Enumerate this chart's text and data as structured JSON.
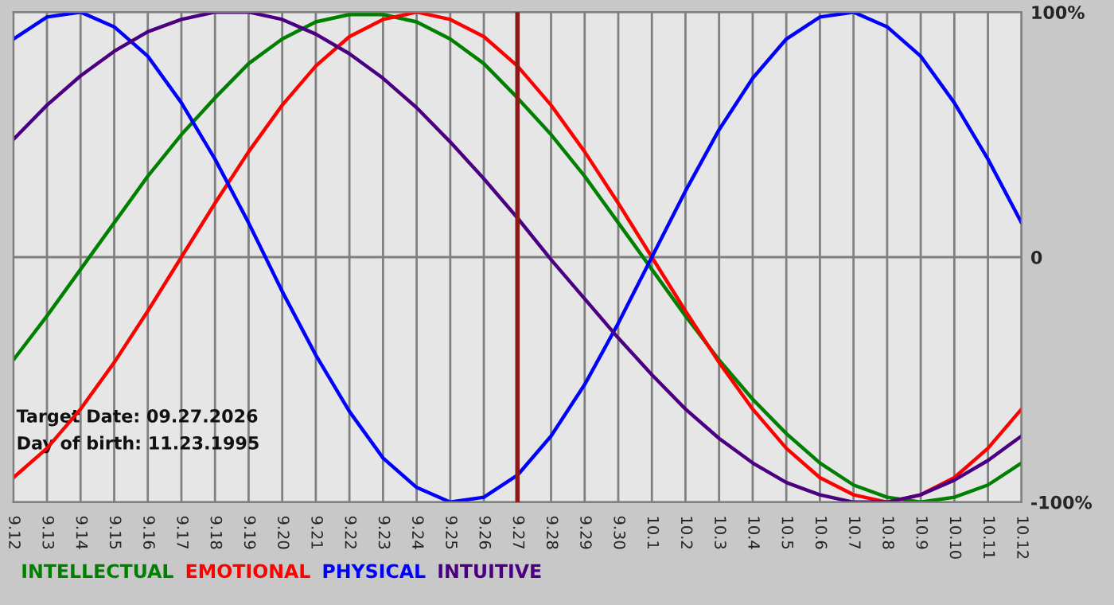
{
  "chart_data": {
    "type": "line",
    "categories": [
      "9.12",
      "9.13",
      "9.14",
      "9.15",
      "9.16",
      "9.17",
      "9.18",
      "9.19",
      "9.20",
      "9.21",
      "9.22",
      "9.23",
      "9.24",
      "9.25",
      "9.26",
      "9.27",
      "9.28",
      "9.29",
      "9.30",
      "10.1",
      "10.2",
      "10.3",
      "10.4",
      "10.5",
      "10.6",
      "10.7",
      "10.8",
      "10.9",
      "10.10",
      "10.11",
      "10.12"
    ],
    "series": [
      {
        "name": "INTELLECTUAL",
        "color": "#008000",
        "values": [
          -42,
          -24,
          -5,
          14,
          33,
          50,
          65,
          79,
          89,
          96,
          99,
          99,
          96,
          89,
          79,
          65,
          50,
          33,
          14,
          -5,
          -24,
          -42,
          -58,
          -72,
          -84,
          -93,
          -98,
          -100,
          -98,
          -93,
          -84
        ]
      },
      {
        "name": "EMOTIONAL",
        "color": "#ff0000",
        "values": [
          -90,
          -78,
          -62,
          -43,
          -22,
          0,
          22,
          43,
          62,
          78,
          90,
          97,
          100,
          97,
          90,
          78,
          62,
          43,
          22,
          0,
          -22,
          -43,
          -62,
          -78,
          -90,
          -97,
          -100,
          -97,
          -90,
          -78,
          -62
        ]
      },
      {
        "name": "PHYSICAL",
        "color": "#0000ff",
        "values": [
          89,
          98,
          100,
          94,
          82,
          63,
          40,
          14,
          -14,
          -40,
          -63,
          -82,
          -94,
          -100,
          -98,
          -89,
          -73,
          -52,
          -27,
          0,
          27,
          52,
          73,
          89,
          98,
          100,
          94,
          82,
          63,
          40,
          14
        ]
      },
      {
        "name": "INTUITIVE",
        "color": "#4b0082",
        "values": [
          48,
          62,
          74,
          84,
          92,
          97,
          100,
          100,
          97,
          91,
          83,
          73,
          61,
          47,
          32,
          16,
          -1,
          -17,
          -33,
          -48,
          -62,
          -74,
          -84,
          -92,
          -97,
          -100,
          -100,
          -97,
          -91,
          -83,
          -73
        ]
      }
    ],
    "ylim": [
      -100,
      100
    ],
    "yticks": [
      {
        "value": 100,
        "label": "100%"
      },
      0,
      {
        "value": -100,
        "label": "-100%"
      }
    ],
    "ref_lines": [
      {
        "axis": "x",
        "value": "9.27",
        "color": "#8b1a1a"
      }
    ],
    "annotations": [
      "Target Date: 09.27.2026",
      "Day of birth: 11.23.1995"
    ],
    "grid": true,
    "legend": "bottom",
    "marker": "none",
    "line_style": "solid"
  }
}
